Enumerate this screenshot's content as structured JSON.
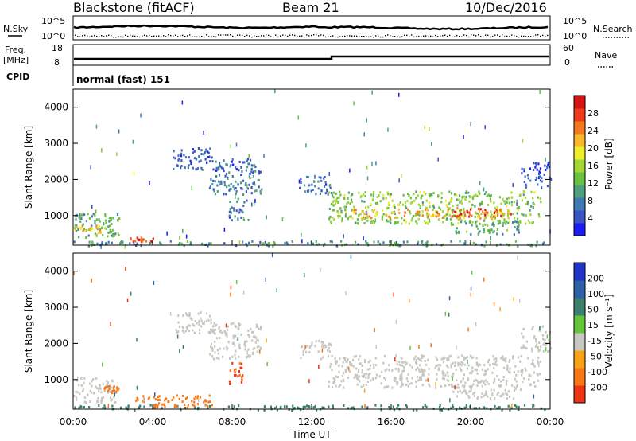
{
  "header": {
    "station": "Blackstone (fitACF)",
    "beam": "Beam 21",
    "date": "10/Dec/2016"
  },
  "noise_panel": {
    "left_label": "N.Sky",
    "right_label": "N.Search",
    "tick_top": "10^5",
    "tick_bottom": "10^0"
  },
  "freq_panel": {
    "left_label_1": "Freq.",
    "left_label_2": "[MHz]",
    "right_label": "Nave",
    "left_ticks": [
      "18",
      "8"
    ],
    "right_ticks": [
      "60",
      "0"
    ]
  },
  "cpid": {
    "label": "CPID",
    "value": "normal (fast) 151"
  },
  "chart_data": [
    {
      "type": "heatmap",
      "quantity": "Power",
      "ylabel": "Slant Range [km]",
      "colorbar_label": "Power [dB]",
      "yticks": [
        "1000",
        "2000",
        "3000",
        "4000"
      ],
      "ylim": [
        180,
        4500
      ],
      "colorbar_ticks": [
        "4",
        "8",
        "12",
        "16",
        "20",
        "24",
        "28"
      ],
      "colorbar_colors": [
        "#1a1cf0",
        "#3a55c6",
        "#3f7ab4",
        "#4fa07e",
        "#6cc040",
        "#a3d637",
        "#eeee2a",
        "#f7b72a",
        "#f47a20",
        "#ed3b1c",
        "#d81515"
      ],
      "regions": [
        {
          "x": [
            0.0,
            2.3
          ],
          "y": [
            380,
            1100
          ],
          "level": 0.35
        },
        {
          "x": [
            0.0,
            1.5
          ],
          "y": [
            550,
            750
          ],
          "level": 0.65
        },
        {
          "x": [
            0.0,
            24.0
          ],
          "y": [
            180,
            320
          ],
          "level": 0.3
        },
        {
          "x": [
            2.8,
            4.0
          ],
          "y": [
            300,
            420
          ],
          "level": 0.85
        },
        {
          "x": [
            5.0,
            7.0
          ],
          "y": [
            2300,
            2900
          ],
          "level": 0.15
        },
        {
          "x": [
            6.8,
            9.5
          ],
          "y": [
            1600,
            2600
          ],
          "level": 0.2
        },
        {
          "x": [
            7.8,
            8.8
          ],
          "y": [
            900,
            1500
          ],
          "level": 0.2
        },
        {
          "x": [
            11.3,
            13.0
          ],
          "y": [
            1600,
            2100
          ],
          "level": 0.2
        },
        {
          "x": [
            12.8,
            23.5
          ],
          "y": [
            800,
            1700
          ],
          "level": 0.45
        },
        {
          "x": [
            14.0,
            22.0
          ],
          "y": [
            950,
            1200
          ],
          "level": 0.7
        },
        {
          "x": [
            19.0,
            21.5
          ],
          "y": [
            1000,
            1250
          ],
          "level": 0.88
        },
        {
          "x": [
            19.0,
            22.5
          ],
          "y": [
            500,
            900
          ],
          "level": 0.35
        },
        {
          "x": [
            22.5,
            24.0
          ],
          "y": [
            1800,
            2500
          ],
          "level": 0.15
        }
      ]
    },
    {
      "type": "heatmap",
      "quantity": "Velocity",
      "ylabel": "Slant Range [km]",
      "colorbar_label": "Velocity [m s⁻¹]",
      "yticks": [
        "1000",
        "2000",
        "3000",
        "4000"
      ],
      "ylim": [
        180,
        4500
      ],
      "colorbar_ticks": [
        "200",
        "100",
        "50",
        "15",
        "-15",
        "-50",
        "-100",
        "-200"
      ],
      "colorbar_colors": [
        "#2134c8",
        "#2f61a6",
        "#3b7f6d",
        "#64c53a",
        "#c8c8c0",
        "#f5a216",
        "#f87817",
        "#ed3514"
      ],
      "regions": [
        {
          "x": [
            0.0,
            2.3
          ],
          "y": [
            400,
            1100
          ],
          "v": 0
        },
        {
          "x": [
            0.0,
            24.0
          ],
          "y": [
            180,
            320
          ],
          "v": 60
        },
        {
          "x": [
            1.5,
            2.3
          ],
          "y": [
            650,
            850
          ],
          "v": -60
        },
        {
          "x": [
            3.0,
            7.0
          ],
          "y": [
            250,
            600
          ],
          "v": -60
        },
        {
          "x": [
            5.0,
            7.0
          ],
          "y": [
            2300,
            2900
          ],
          "v": 0
        },
        {
          "x": [
            6.8,
            9.5
          ],
          "y": [
            1600,
            2600
          ],
          "v": 0
        },
        {
          "x": [
            7.8,
            8.6
          ],
          "y": [
            900,
            1500
          ],
          "v": -80
        },
        {
          "x": [
            11.3,
            13.0
          ],
          "y": [
            1600,
            2100
          ],
          "v": 0
        },
        {
          "x": [
            12.8,
            23.5
          ],
          "y": [
            800,
            1700
          ],
          "v": 0
        },
        {
          "x": [
            19.0,
            22.5
          ],
          "y": [
            500,
            900
          ],
          "v": 0
        },
        {
          "x": [
            22.5,
            24.0
          ],
          "y": [
            1800,
            2500
          ],
          "v": 0
        }
      ]
    }
  ],
  "x_axis": {
    "label": "Time UT",
    "ticks": [
      "00:00",
      "04:00",
      "08:00",
      "12:00",
      "16:00",
      "20:00",
      "00:00"
    ],
    "range_hours": [
      0,
      24
    ]
  }
}
